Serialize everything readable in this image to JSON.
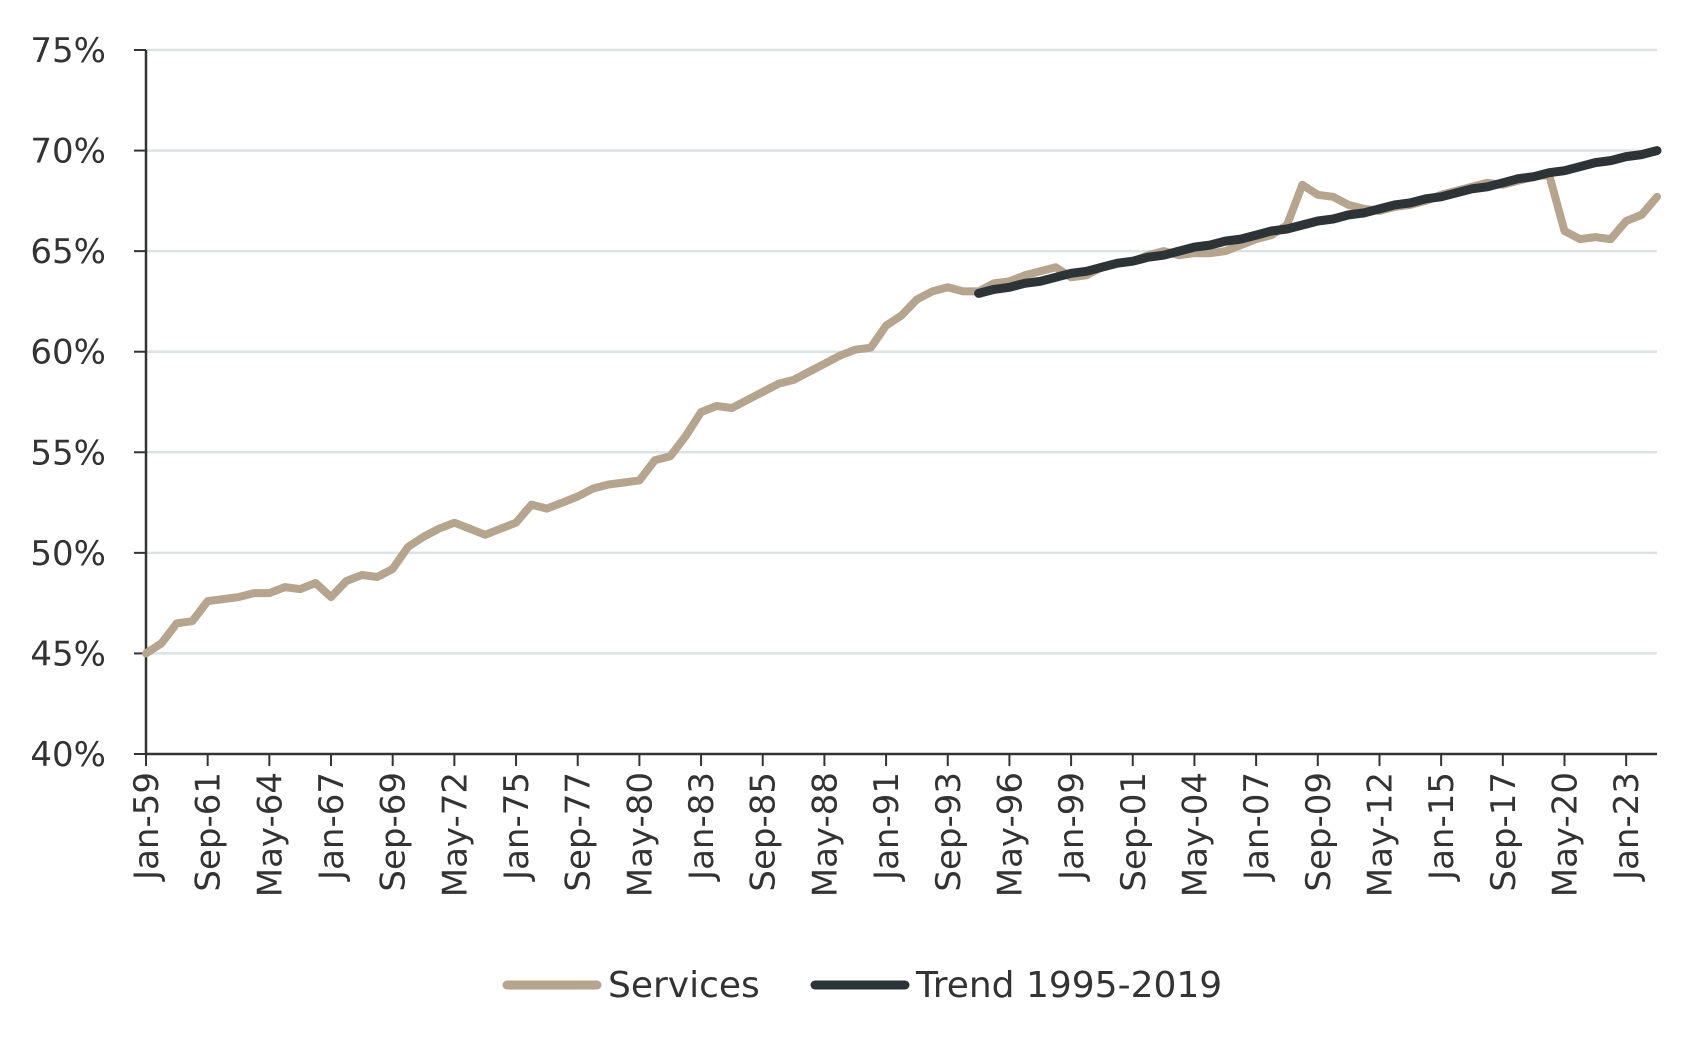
{
  "chart_data": {
    "type": "line",
    "categories": [
      "Jan-59",
      null,
      null,
      null,
      "Sep-61",
      null,
      null,
      null,
      "May-64",
      null,
      null,
      null,
      "Jan-67",
      null,
      null,
      null,
      "Sep-69",
      null,
      null,
      null,
      "May-72",
      null,
      null,
      null,
      "Jan-75",
      null,
      null,
      null,
      "Sep-77",
      null,
      null,
      null,
      "May-80",
      null,
      null,
      null,
      "Jan-83",
      null,
      null,
      null,
      "Sep-85",
      null,
      null,
      null,
      "May-88",
      null,
      null,
      null,
      "Jan-91",
      null,
      null,
      null,
      "Sep-93",
      null,
      null,
      null,
      "May-96",
      null,
      null,
      null,
      "Jan-99",
      null,
      null,
      null,
      "Sep-01",
      null,
      null,
      null,
      "May-04",
      null,
      null,
      null,
      "Jan-07",
      null,
      null,
      null,
      "Sep-09",
      null,
      null,
      null,
      "May-12",
      null,
      null,
      null,
      "Jan-15",
      null,
      null,
      null,
      "Sep-17",
      null,
      null,
      null,
      "May-20",
      null,
      null,
      null,
      "Jan-23",
      null,
      null
    ],
    "series": [
      {
        "name": "Services",
        "color": "#b5a48e",
        "values": [
          45.0,
          45.5,
          46.5,
          46.6,
          47.6,
          47.7,
          47.8,
          48.0,
          48.0,
          48.3,
          48.2,
          48.5,
          47.8,
          48.6,
          48.9,
          48.8,
          49.2,
          50.3,
          50.8,
          51.2,
          51.5,
          51.2,
          50.9,
          51.2,
          51.5,
          52.4,
          52.2,
          52.5,
          52.8,
          53.2,
          53.4,
          53.5,
          53.6,
          54.6,
          54.8,
          55.8,
          57.0,
          57.3,
          57.2,
          57.6,
          58.0,
          58.4,
          58.6,
          59.0,
          59.4,
          59.8,
          60.1,
          60.2,
          61.3,
          61.8,
          62.6,
          63.0,
          63.2,
          63.0,
          63.0,
          63.4,
          63.5,
          63.8,
          64.0,
          64.2,
          63.7,
          63.8,
          64.2,
          64.4,
          64.5,
          64.8,
          65.0,
          64.8,
          64.9,
          64.9,
          65.0,
          65.3,
          65.6,
          65.8,
          66.3,
          68.3,
          67.8,
          67.7,
          67.3,
          67.1,
          67.0,
          67.2,
          67.3,
          67.5,
          67.8,
          68.0,
          68.2,
          68.4,
          68.3,
          68.5,
          68.7,
          68.8,
          66.0,
          65.6,
          65.7,
          65.6,
          66.5,
          66.8,
          67.7
        ]
      },
      {
        "name": "Trend 1995-2019",
        "color": "#2d3438",
        "values": [
          null,
          null,
          null,
          null,
          null,
          null,
          null,
          null,
          null,
          null,
          null,
          null,
          null,
          null,
          null,
          null,
          null,
          null,
          null,
          null,
          null,
          null,
          null,
          null,
          null,
          null,
          null,
          null,
          null,
          null,
          null,
          null,
          null,
          null,
          null,
          null,
          null,
          null,
          null,
          null,
          null,
          null,
          null,
          null,
          null,
          null,
          null,
          null,
          null,
          null,
          null,
          null,
          null,
          null,
          62.9,
          63.1,
          63.2,
          63.4,
          63.5,
          63.7,
          63.9,
          64.0,
          64.2,
          64.4,
          64.5,
          64.7,
          64.8,
          65.0,
          65.2,
          65.3,
          65.5,
          65.6,
          65.8,
          66.0,
          66.1,
          66.3,
          66.5,
          66.6,
          66.8,
          66.9,
          67.1,
          67.3,
          67.4,
          67.6,
          67.7,
          67.9,
          68.1,
          68.2,
          68.4,
          68.6,
          68.7,
          68.9,
          69.0,
          69.2,
          69.4,
          69.5,
          69.7,
          69.8,
          70.0
        ]
      }
    ],
    "ylim": [
      40,
      75
    ],
    "yticks": [
      {
        "value": 40,
        "label": "40%"
      },
      {
        "value": 45,
        "label": "45%"
      },
      {
        "value": 50,
        "label": "50%"
      },
      {
        "value": 55,
        "label": "55%"
      },
      {
        "value": 60,
        "label": "60%"
      },
      {
        "value": 65,
        "label": "65%"
      },
      {
        "value": 70,
        "label": "70%"
      },
      {
        "value": 75,
        "label": "75%"
      }
    ],
    "grid": true,
    "legend": "bottom"
  }
}
